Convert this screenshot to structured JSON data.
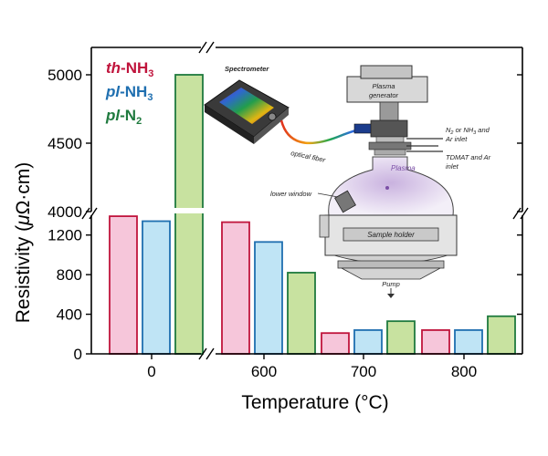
{
  "chart_data": {
    "type": "bar",
    "xlabel": "Temperature (°C)",
    "ylabel_prefix": "Resistivity (",
    "ylabel_mu": "μ",
    "ylabel_suffix": "Ω·cm)",
    "categories": [
      "0",
      "600",
      "700",
      "800"
    ],
    "y_break": [
      1400,
      4000
    ],
    "ylim_lower": [
      0,
      1400
    ],
    "ylim_upper": [
      4000,
      5200
    ],
    "yticks_lower": [
      0,
      400,
      800,
      1200
    ],
    "yticks_upper": [
      4000,
      4500,
      5000
    ],
    "x_break": true,
    "grid": false,
    "legend_position": "top-left",
    "series": [
      {
        "name_prefix": "th",
        "name_suffix": "-NH",
        "name_sub": "3",
        "color": "#c0143c",
        "fill": "#f6c6da",
        "values": [
          1390,
          1330,
          210,
          240
        ]
      },
      {
        "name_prefix": "pl",
        "name_suffix": "-NH",
        "name_sub": "3",
        "color": "#1f6fb0",
        "fill": "#bfe4f5",
        "values": [
          1340,
          1130,
          240,
          240
        ]
      },
      {
        "name_prefix": "pl",
        "name_suffix": "-N",
        "name_sub": "2",
        "color": "#1f7a3e",
        "fill": "#c8e2a0",
        "values": [
          5000,
          820,
          330,
          380
        ]
      }
    ]
  },
  "inset": {
    "spectrometer": "Spectrometer",
    "optical_fiber": "optical   fiber",
    "plasma_generator_line1": "Plasma",
    "plasma_generator_line2": "generator",
    "inlet1_pre": "N",
    "inlet1_sub": "2",
    "inlet1_mid": " or NH",
    "inlet1_sub2": "3",
    "inlet1_post": " and",
    "inlet1_line2": "Ar inlet",
    "inlet2_line1": "TDMAT and Ar",
    "inlet2_line2": "inlet",
    "plasma": "Plasma",
    "lower_window": "lower window",
    "sample_holder": "Sample holder",
    "pump": "Pump"
  }
}
